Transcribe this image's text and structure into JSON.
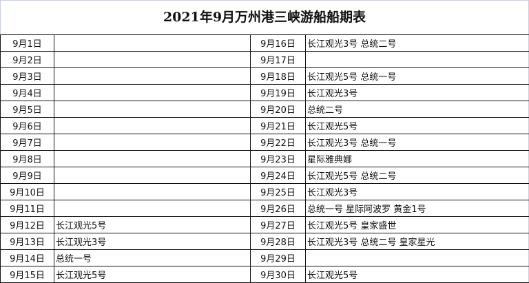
{
  "title": "2021年9月万州港三峡游船船期表",
  "rows": [
    {
      "date_left": "9月1日",
      "ships_left": "",
      "date_right": "9月16日",
      "ships_right": "长江观光3号  总统二号"
    },
    {
      "date_left": "9月2日",
      "ships_left": "",
      "date_right": "9月17日",
      "ships_right": ""
    },
    {
      "date_left": "9月3日",
      "ships_left": "",
      "date_right": "9月18日",
      "ships_right": "长江观光5号  总统一号"
    },
    {
      "date_left": "9月4日",
      "ships_left": "",
      "date_right": "9月19日",
      "ships_right": "长江观光3号"
    },
    {
      "date_left": "9月5日",
      "ships_left": "",
      "date_right": "9月20日",
      "ships_right": "总统二号"
    },
    {
      "date_left": "9月6日",
      "ships_left": "",
      "date_right": "9月21日",
      "ships_right": "长江观光5号"
    },
    {
      "date_left": "9月7日",
      "ships_left": "",
      "date_right": "9月22日",
      "ships_right": "长江观光3号  总统一号"
    },
    {
      "date_left": "9月8日",
      "ships_left": "",
      "date_right": "9月23日",
      "ships_right": "星际雅典娜"
    },
    {
      "date_left": "9月9日",
      "ships_left": "",
      "date_right": "9月24日",
      "ships_right": "长江观光5号  总统二号"
    },
    {
      "date_left": "9月10日",
      "ships_left": "",
      "date_right": "9月25日",
      "ships_right": "长江观光3号"
    },
    {
      "date_left": "9月11日",
      "ships_left": "",
      "date_right": "9月26日",
      "ships_right": "总统一号  星际阿波罗  黄金1号"
    },
    {
      "date_left": "9月12日",
      "ships_left": "长江观光5号",
      "date_right": "9月27日",
      "ships_right": "长江观光5号  皇家盛世"
    },
    {
      "date_left": "9月13日",
      "ships_left": "长江观光3号",
      "date_right": "9月28日",
      "ships_right": "长江观光3号  总统二号  皇家星光"
    },
    {
      "date_left": "9月14日",
      "ships_left": "总统一号",
      "date_right": "9月29日",
      "ships_right": ""
    },
    {
      "date_left": "9月15日",
      "ships_left": "长江观光5号",
      "date_right": "9月30日",
      "ships_right": "长江观光5号"
    }
  ]
}
